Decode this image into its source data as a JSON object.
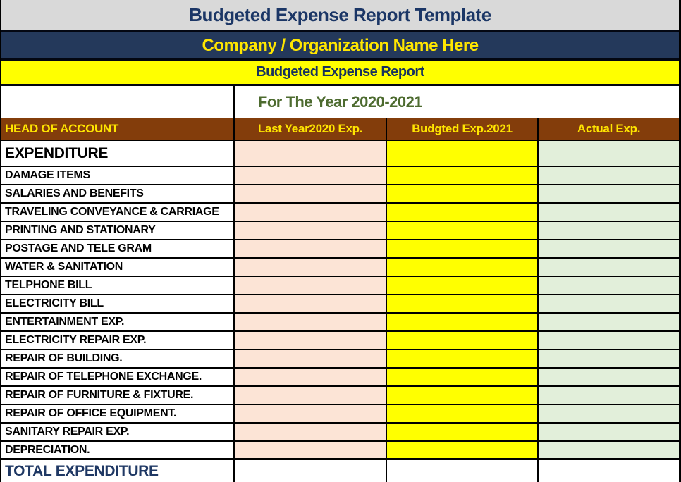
{
  "page": {
    "title": "Budgeted Expense Report Template",
    "company_name": "Company / Organization Name Here",
    "report_title": "Budgeted Expense Report",
    "period": "For The Year 2020-2021"
  },
  "table": {
    "headers": {
      "account": "HEAD OF ACCOUNT",
      "last_year": "Last Year2020 Exp.",
      "budgeted": "Budgted Exp.2021",
      "actual": "Actual Exp."
    },
    "section_row": {
      "label": "EXPENDITURE",
      "values": [
        "",
        "",
        ""
      ]
    },
    "rows": [
      {
        "label": "DAMAGE ITEMS",
        "values": [
          "",
          "",
          ""
        ]
      },
      {
        "label": "SALARIES AND BENEFITS",
        "values": [
          "",
          "",
          ""
        ]
      },
      {
        "label": "TRAVELING CONVEYANCE & CARRIAGE",
        "values": [
          "",
          "",
          ""
        ]
      },
      {
        "label": "PRINTING AND STATIONARY",
        "values": [
          "",
          "",
          ""
        ]
      },
      {
        "label": "POSTAGE AND TELE GRAM",
        "values": [
          "",
          "",
          ""
        ]
      },
      {
        "label": "WATER & SANITATION",
        "values": [
          "",
          "",
          ""
        ]
      },
      {
        "label": "TELPHONE BILL",
        "values": [
          "",
          "",
          ""
        ]
      },
      {
        "label": "ELECTRICITY BILL",
        "values": [
          "",
          "",
          ""
        ]
      },
      {
        "label": "ENTERTAINMENT EXP.",
        "values": [
          "",
          "",
          ""
        ]
      },
      {
        "label": "ELECTRICITY REPAIR EXP.",
        "values": [
          "",
          "",
          ""
        ]
      },
      {
        "label": "REPAIR OF BUILDING.",
        "values": [
          "",
          "",
          ""
        ]
      },
      {
        "label": "REPAIR OF TELEPHONE EXCHANGE.",
        "values": [
          "",
          "",
          ""
        ]
      },
      {
        "label": "REPAIR OF FURNITURE & FIXTURE.",
        "values": [
          "",
          "",
          ""
        ]
      },
      {
        "label": "REPAIR OF OFFICE EQUIPMENT.",
        "values": [
          "",
          "",
          ""
        ]
      },
      {
        "label": "SANITARY REPAIR EXP.",
        "values": [
          "",
          "",
          ""
        ]
      },
      {
        "label": "DEPRECIATION.",
        "values": [
          "",
          "",
          ""
        ]
      }
    ],
    "total_row": {
      "label": "TOTAL EXPENDITURE",
      "values": [
        "",
        "",
        ""
      ]
    }
  },
  "colors": {
    "title_bar_bg": "#d9d9d9",
    "title_text": "#1b3666",
    "company_bar_bg": "#24395b",
    "company_text": "#ffe600",
    "report_bar_bg": "#ffff00",
    "report_text": "#17325e",
    "period_text": "#4d6b2f",
    "header_bg": "#833d0b",
    "header_text": "#ffe500",
    "last_year_col_bg": "#fce4d6",
    "budgeted_col_bg": "#ffff00",
    "actual_col_bg": "#e2efda",
    "total_text": "#1f3864",
    "border": "#000000"
  }
}
